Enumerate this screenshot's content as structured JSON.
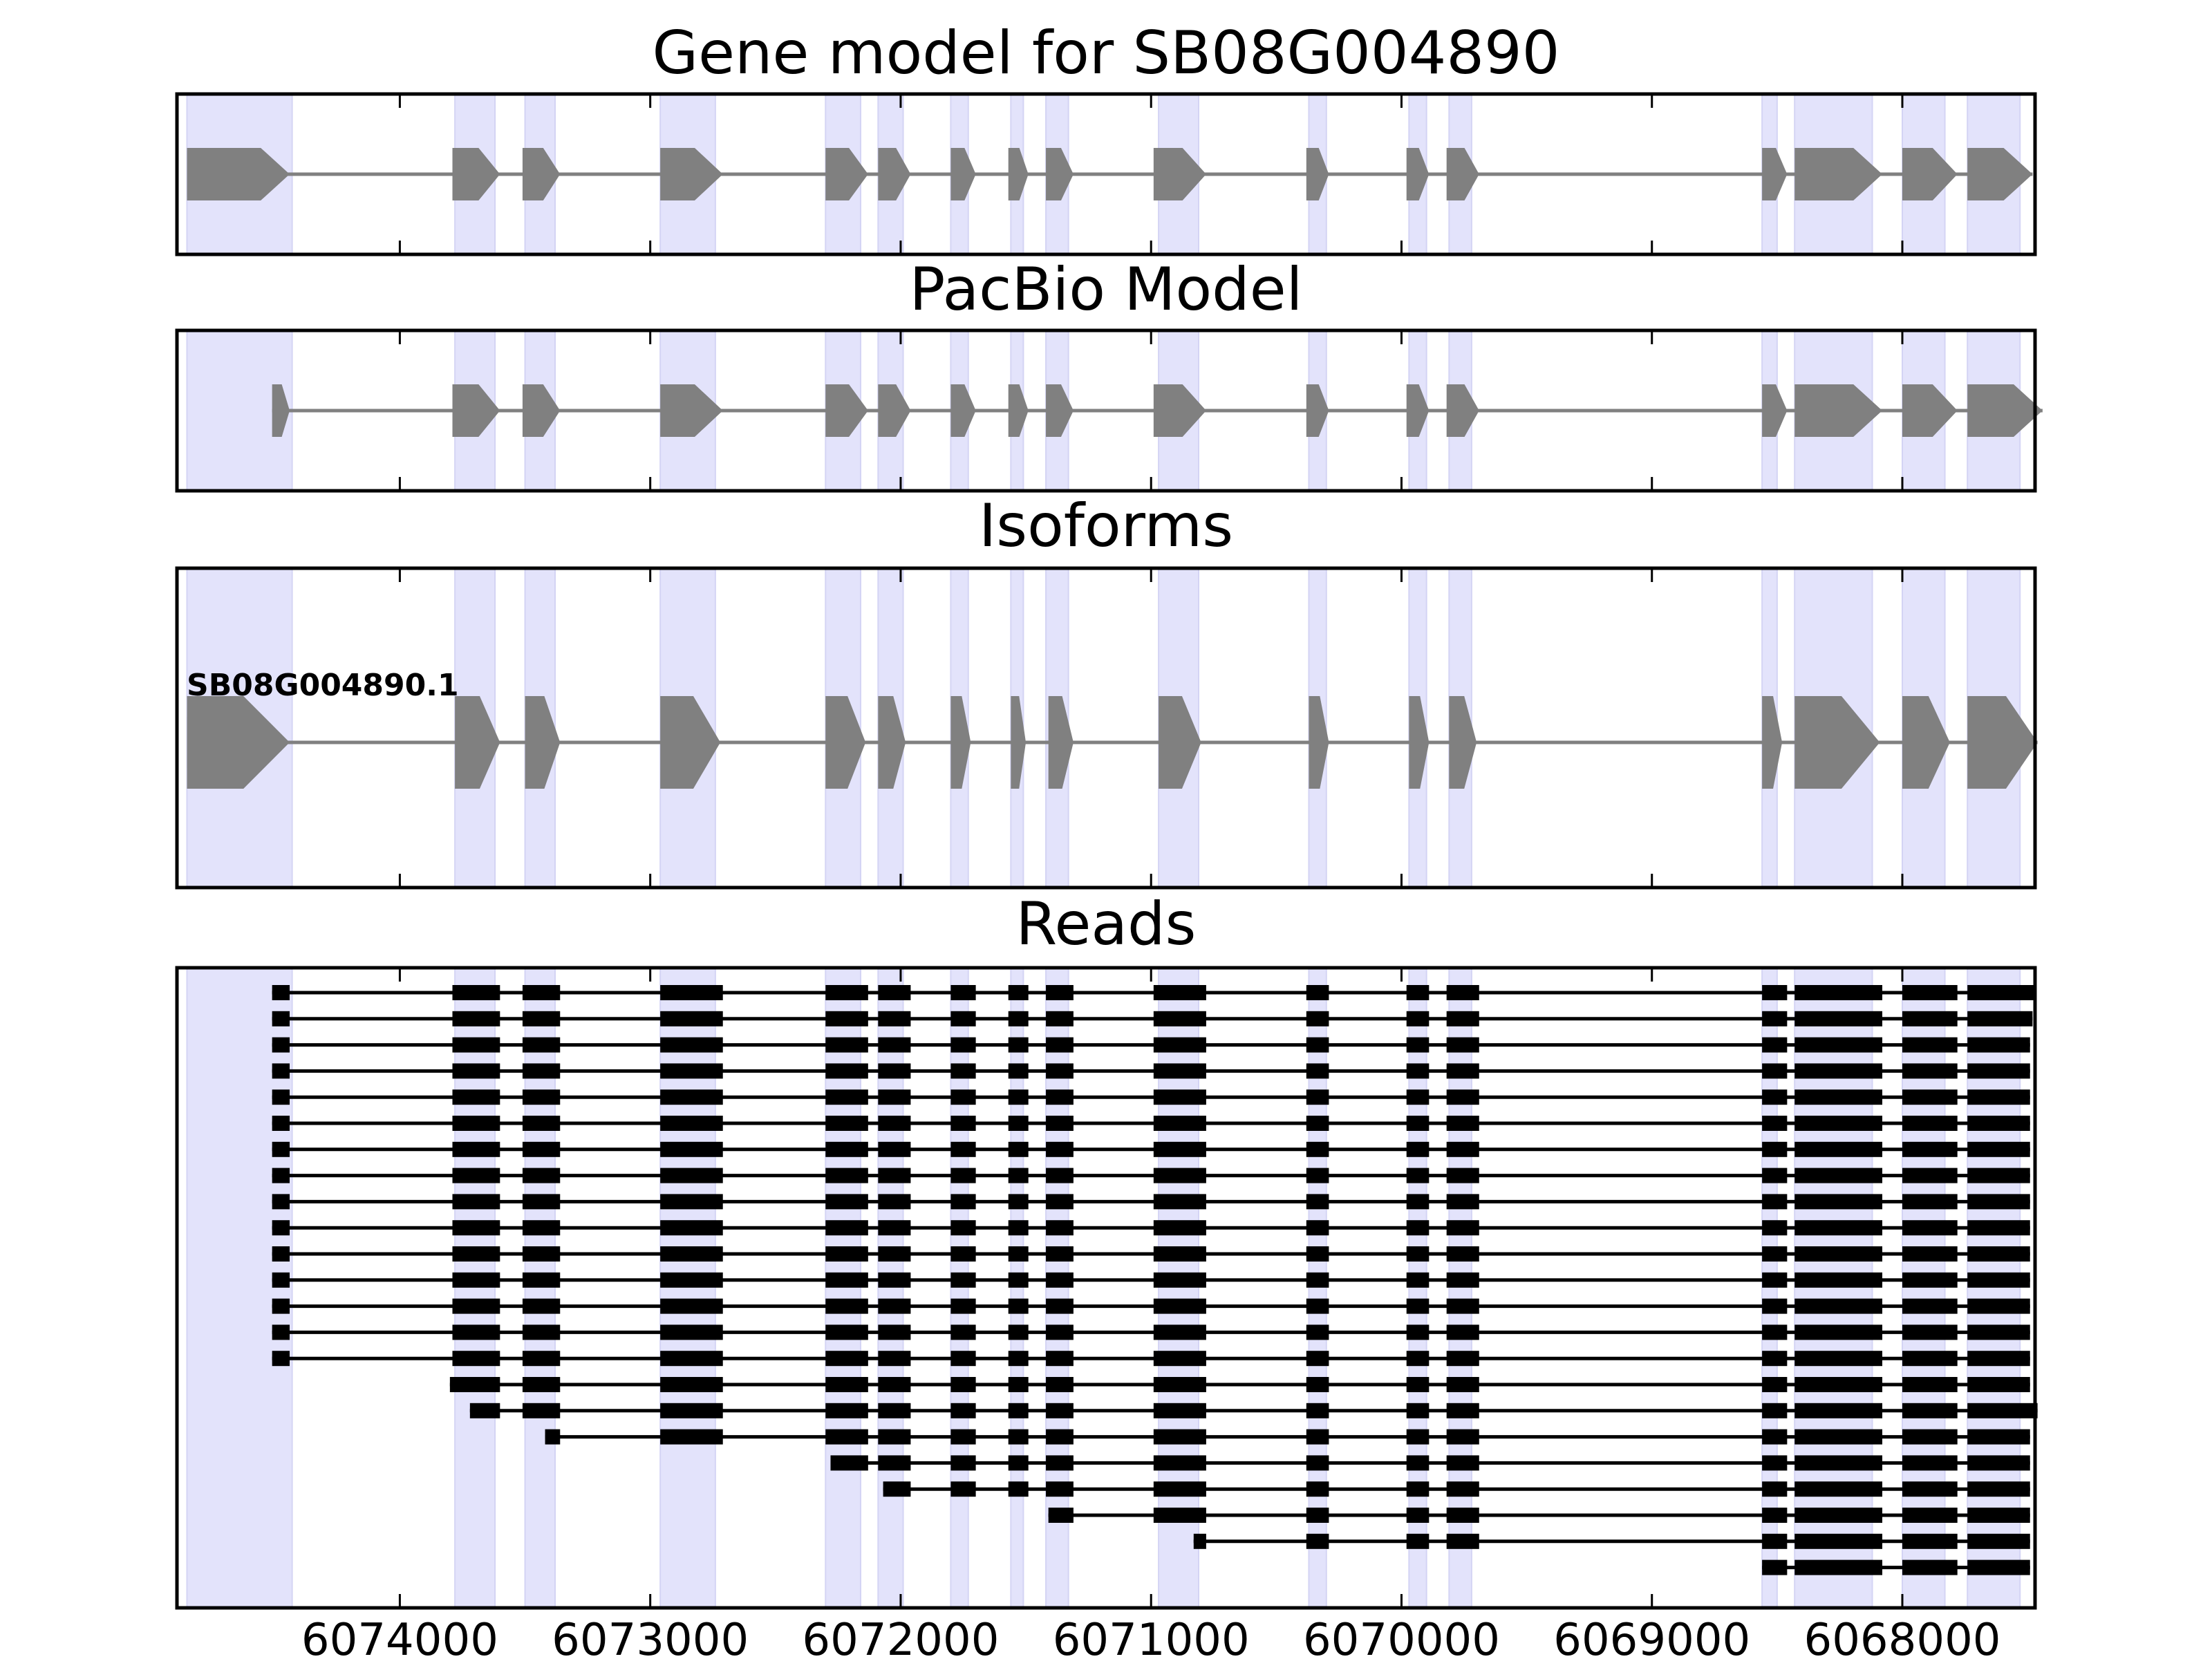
{
  "panels": [
    {
      "id": "gene",
      "title": "Gene model for SB08G004890"
    },
    {
      "id": "pacbio",
      "title": "PacBio Model"
    },
    {
      "id": "isoforms",
      "title": "Isoforms"
    },
    {
      "id": "reads",
      "title": "Reads"
    }
  ],
  "isoform_label": "SB08G004890.1",
  "colors": {
    "exon_model": "#808080",
    "exon_read": "#000000",
    "intron_model": "#808080",
    "intron_read": "#000000",
    "highlight": "#e3e3fb",
    "frame": "#000000"
  },
  "chart_data": {
    "type": "gene-structure",
    "axis": {
      "min": 6067470,
      "max": 6074890,
      "reversed": true,
      "xlabel": ""
    },
    "ticks": [
      6074000,
      6073000,
      6072000,
      6071000,
      6070000,
      6069000,
      6068000
    ],
    "tick_labels": [
      "6074000",
      "6073000",
      "6072000",
      "6071000",
      "6070000",
      "6069000",
      "6068000"
    ],
    "highlight_regions": [
      [
        6074430,
        6074850
      ],
      [
        6073780,
        6073620
      ],
      [
        6073500,
        6073380
      ],
      [
        6072960,
        6072740
      ],
      [
        6072300,
        6072160
      ],
      [
        6072090,
        6071990
      ],
      [
        6071800,
        6071730
      ],
      [
        6071560,
        6071510
      ],
      [
        6071420,
        6071330
      ],
      [
        6070970,
        6070810
      ],
      [
        6070370,
        6070300
      ],
      [
        6069970,
        6069900
      ],
      [
        6069810,
        6069720
      ],
      [
        6068560,
        6068500
      ],
      [
        6068430,
        6068120
      ],
      [
        6068000,
        6067830
      ],
      [
        6067740,
        6067530
      ]
    ],
    "gene_model": {
      "exons": [
        [
          6074850,
          6074440
        ],
        [
          6073790,
          6073600
        ],
        [
          6073510,
          6073360
        ],
        [
          6072960,
          6072710
        ],
        [
          6072300,
          6072130
        ],
        [
          6072090,
          6071960
        ],
        [
          6071800,
          6071700
        ],
        [
          6071570,
          6071490
        ],
        [
          6071420,
          6071310
        ],
        [
          6070990,
          6070780
        ],
        [
          6070380,
          6070290
        ],
        [
          6069980,
          6069890
        ],
        [
          6069820,
          6069690
        ],
        [
          6068560,
          6068460
        ],
        [
          6068430,
          6068080
        ],
        [
          6068000,
          6067780
        ],
        [
          6067740,
          6067480
        ]
      ]
    },
    "pacbio_model": {
      "exons": [
        [
          6074510,
          6074440
        ],
        [
          6073790,
          6073600
        ],
        [
          6073510,
          6073360
        ],
        [
          6072960,
          6072710
        ],
        [
          6072300,
          6072130
        ],
        [
          6072090,
          6071960
        ],
        [
          6071800,
          6071700
        ],
        [
          6071570,
          6071490
        ],
        [
          6071420,
          6071310
        ],
        [
          6070990,
          6070780
        ],
        [
          6070380,
          6070290
        ],
        [
          6069980,
          6069890
        ],
        [
          6069820,
          6069690
        ],
        [
          6068560,
          6068460
        ],
        [
          6068430,
          6068080
        ],
        [
          6068000,
          6067780
        ],
        [
          6067740,
          6067440
        ]
      ]
    },
    "isoforms": [
      {
        "name": "SB08G004890.1",
        "exons": [
          [
            6074850,
            6074440
          ],
          [
            6073780,
            6073600
          ],
          [
            6073500,
            6073360
          ],
          [
            6072960,
            6072720
          ],
          [
            6072300,
            6072140
          ],
          [
            6072090,
            6071980
          ],
          [
            6071800,
            6071720
          ],
          [
            6071560,
            6071500
          ],
          [
            6071410,
            6071310
          ],
          [
            6070970,
            6070800
          ],
          [
            6070370,
            6070290
          ],
          [
            6069970,
            6069890
          ],
          [
            6069810,
            6069700
          ],
          [
            6068560,
            6068480
          ],
          [
            6068430,
            6068090
          ],
          [
            6068000,
            6067810
          ],
          [
            6067740,
            6067460
          ]
        ]
      }
    ],
    "reads": [
      {
        "first": 0,
        "last": 16,
        "start": 6074510,
        "end": 6067470
      },
      {
        "first": 0,
        "last": 16,
        "start": 6074510,
        "end": 6067480
      },
      {
        "first": 0,
        "last": 16,
        "start": 6074510,
        "end": 6067490
      },
      {
        "first": 0,
        "last": 16,
        "start": 6074510,
        "end": 6067490
      },
      {
        "first": 0,
        "last": 16,
        "start": 6074510,
        "end": 6067490
      },
      {
        "first": 0,
        "last": 16,
        "start": 6074510,
        "end": 6067490
      },
      {
        "first": 0,
        "last": 16,
        "start": 6074510,
        "end": 6067490
      },
      {
        "first": 0,
        "last": 16,
        "start": 6074510,
        "end": 6067490
      },
      {
        "first": 0,
        "last": 16,
        "start": 6074510,
        "end": 6067490
      },
      {
        "first": 0,
        "last": 16,
        "start": 6074510,
        "end": 6067490
      },
      {
        "first": 0,
        "last": 16,
        "start": 6074510,
        "end": 6067490
      },
      {
        "first": 0,
        "last": 16,
        "start": 6074510,
        "end": 6067490
      },
      {
        "first": 0,
        "last": 16,
        "start": 6074510,
        "end": 6067490
      },
      {
        "first": 0,
        "last": 16,
        "start": 6074510,
        "end": 6067490
      },
      {
        "first": 0,
        "last": 16,
        "start": 6074510,
        "end": 6067490
      },
      {
        "first": 1,
        "last": 16,
        "start": 6073800,
        "end": 6067490
      },
      {
        "first": 1,
        "last": 16,
        "start": 6073720,
        "end": 6067460
      },
      {
        "first": 2,
        "last": 16,
        "start": 6073420,
        "end": 6067490
      },
      {
        "first": 4,
        "last": 16,
        "start": 6072280,
        "end": 6067490
      },
      {
        "first": 5,
        "last": 16,
        "start": 6072070,
        "end": 6067490
      },
      {
        "first": 8,
        "last": 16,
        "start": 6071410,
        "end": 6067490
      },
      {
        "first": 9,
        "last": 16,
        "start": 6070830,
        "end": 6067490
      },
      {
        "first": 13,
        "last": 16,
        "start": 6068560,
        "end": 6067490
      }
    ]
  }
}
